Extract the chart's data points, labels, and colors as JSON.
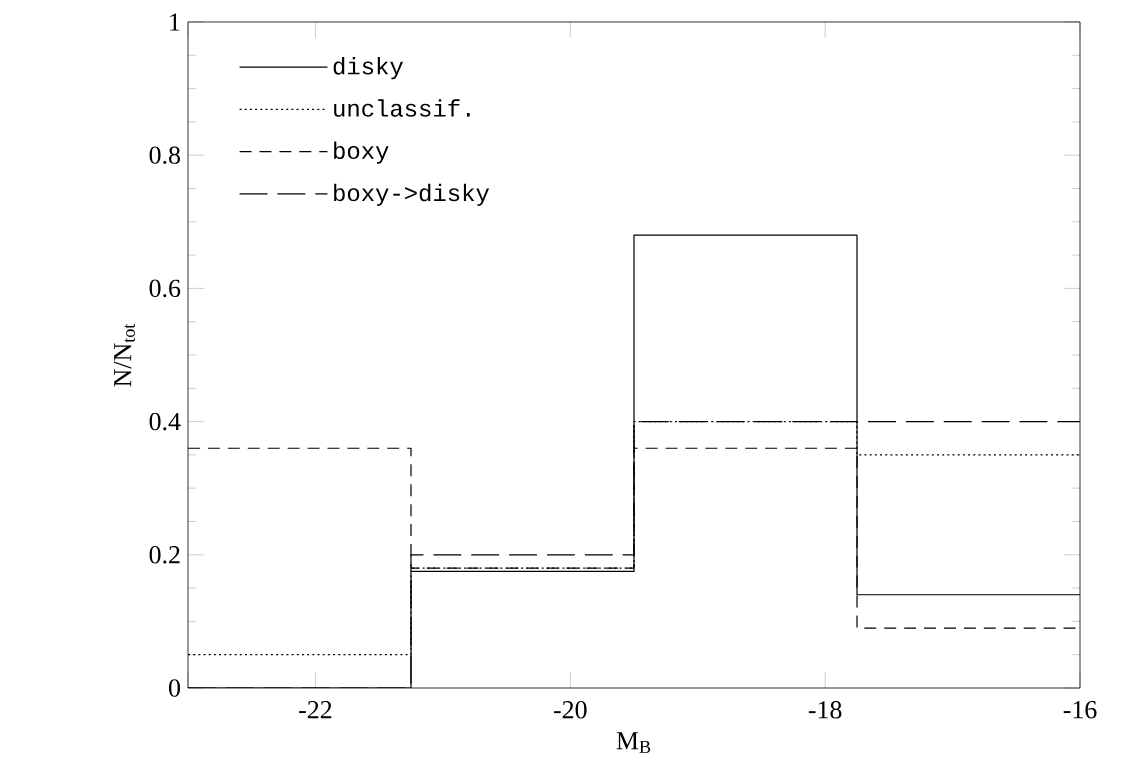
{
  "chart_data": {
    "type": "step",
    "xlabel": "M$_{B}$",
    "ylabel": "N/N$_{tot}$",
    "x": [
      -23,
      -21.25,
      -19.5,
      -17.75,
      -16
    ],
    "series": [
      {
        "name": "disky",
        "color": "#000000",
        "line_style": "solid",
        "values": [
          0,
          0.175,
          0.68,
          0.14,
          0.14
        ]
      },
      {
        "name": "unclassif.",
        "color": "#000000",
        "line_style": "dotted",
        "values": [
          0.05,
          0.18,
          0.4,
          0.35,
          0.35
        ]
      },
      {
        "name": "boxy",
        "color": "#000000",
        "line_style": "dashed",
        "values": [
          0.36,
          0.18,
          0.36,
          0.09,
          0.09
        ]
      },
      {
        "name": "boxy->disky",
        "color": "#000000",
        "line_style": "dashed",
        "values": [
          0,
          0.2,
          0.4,
          0.4,
          0.4
        ]
      }
    ],
    "xlim": [
      -23,
      -16
    ],
    "ylim": [
      0,
      1
    ],
    "xticks": [
      {
        "value": -23,
        "label": null
      },
      -22,
      -20,
      -18,
      -16
    ],
    "yticks": [
      0,
      0.2,
      0.4,
      0.6,
      0.8,
      1
    ],
    "legend": "top left",
    "grid": false
  }
}
